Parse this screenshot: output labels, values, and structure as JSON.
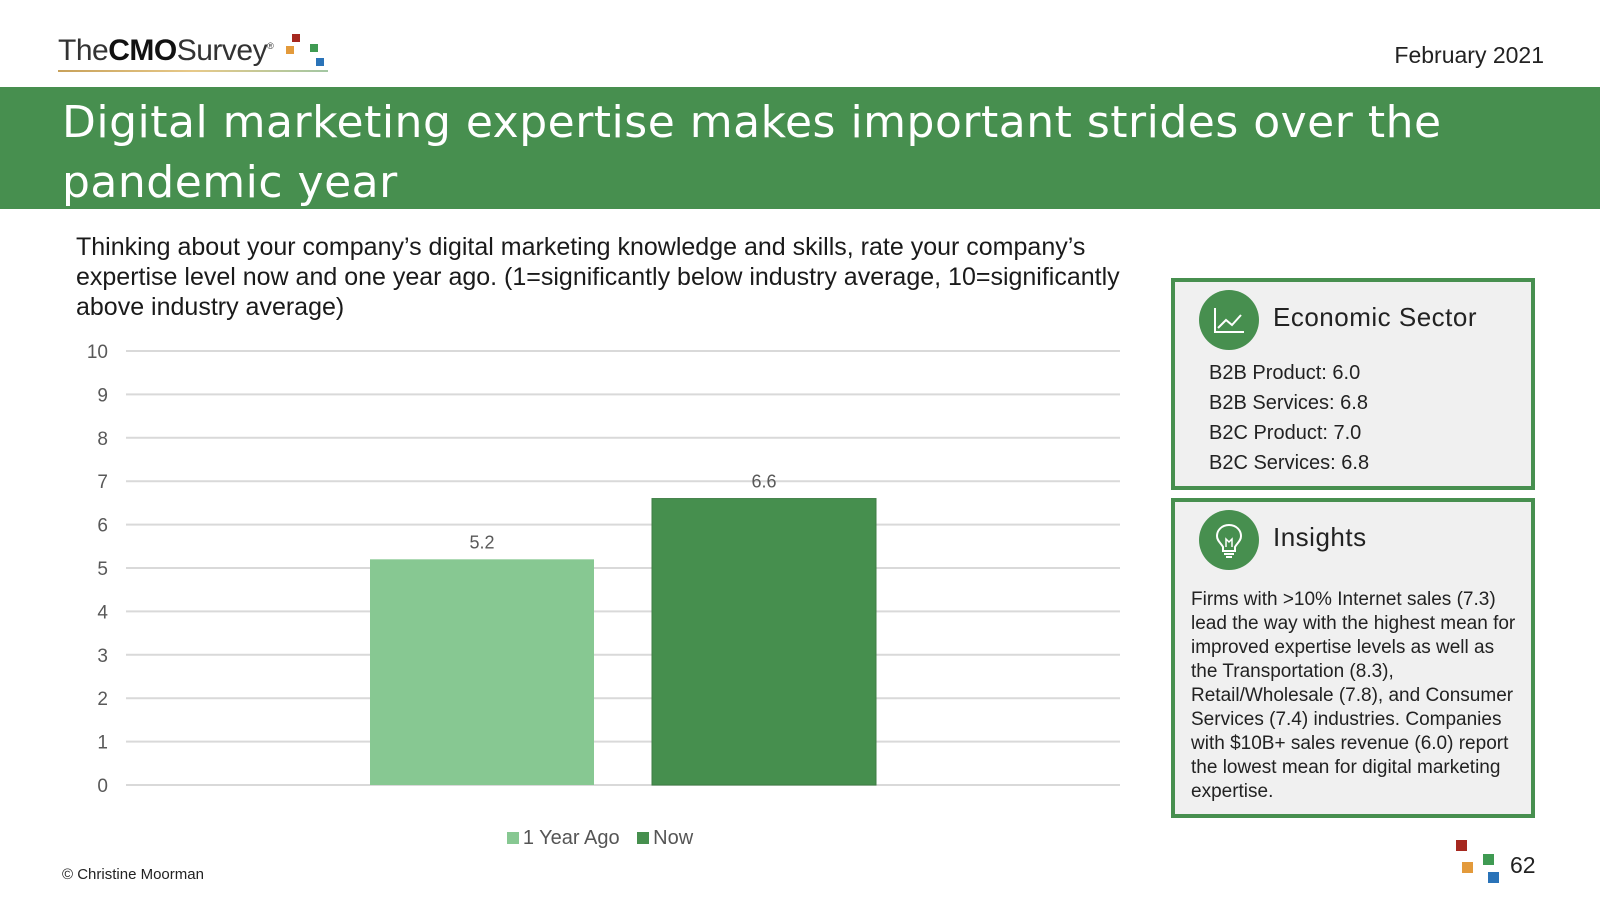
{
  "header": {
    "logo_pre": "The",
    "logo_bold": "CMO",
    "logo_post": "Survey",
    "logo_mark": "®",
    "date": "February 2021"
  },
  "title_line1": "Digital marketing expertise makes important strides over the",
  "title_line2": "pandemic year",
  "question": "Thinking about your company’s digital marketing knowledge and skills, rate your company’s expertise level now and one year ago. (1=significantly below industry average, 10=significantly above industry average)",
  "colors": {
    "banner": "#478f4f",
    "one_year_ago": "#87c892",
    "now": "#468f4e",
    "grid": "#d9d9d9",
    "logo_red": "#a6281f",
    "logo_orange": "#e39a3b",
    "logo_green": "#3f9a52",
    "logo_blue": "#2a73b8"
  },
  "chart_data": {
    "type": "bar",
    "categories": [
      ""
    ],
    "series": [
      {
        "name": "1 Year Ago",
        "values": [
          5.2
        ]
      },
      {
        "name": "Now",
        "values": [
          6.6
        ]
      }
    ],
    "data_labels": [
      "5.2",
      "6.6"
    ],
    "ylim": [
      0,
      10
    ],
    "yticks": [
      0,
      1,
      2,
      3,
      4,
      5,
      6,
      7,
      8,
      9,
      10
    ],
    "grid": true,
    "legend_position": "bottom"
  },
  "economic_sector": {
    "icon": "line-chart-icon",
    "title": "Economic Sector",
    "items": [
      "B2B Product: 6.0",
      "B2B Services: 6.8",
      "B2C Product: 7.0",
      "B2C Services: 6.8"
    ]
  },
  "insights": {
    "icon": "lightbulb-icon",
    "title": "Insights",
    "text": "Firms with >10% Internet sales (7.3) lead the way with the highest mean for improved expertise levels as well as the Transportation (8.3), Retail/Wholesale (7.8), and Consumer Services (7.4) industries. Companies with $10B+ sales revenue (6.0) report the lowest mean for digital marketing expertise."
  },
  "footer": {
    "copyright": "© Christine Moorman",
    "page_number": "62"
  }
}
